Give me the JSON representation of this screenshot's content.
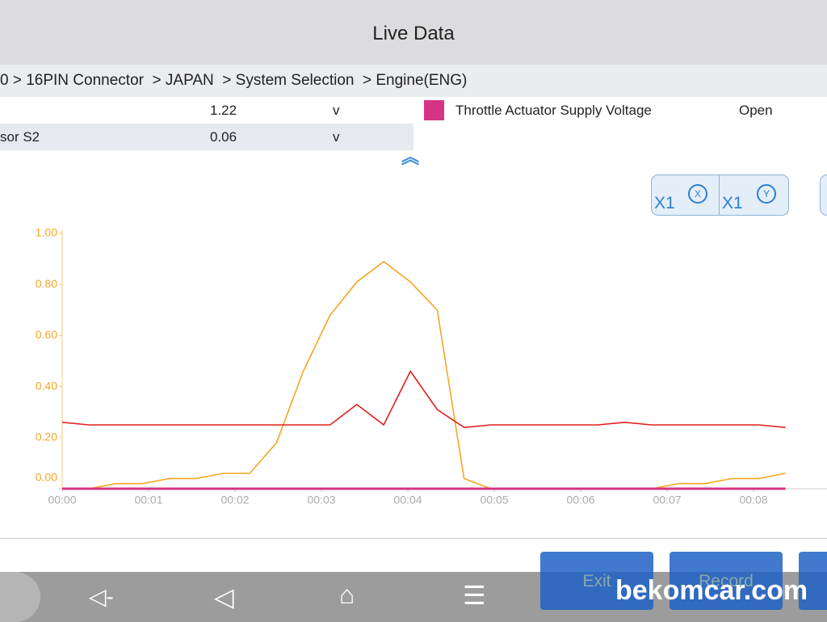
{
  "header": {
    "title": "Live Data"
  },
  "breadcrumb": "0 > 16PIN Connector  > JAPAN  > System Selection  > Engine(ENG)",
  "rows": [
    {
      "value": "1.22",
      "unit": "v"
    },
    {
      "name": "sor S2",
      "value": "0.06",
      "unit": "v"
    }
  ],
  "legend_status": "Open",
  "zoom": [
    "X1",
    "X1"
  ],
  "buttons": [
    "Exit",
    "Record"
  ],
  "watermark": "bekomcar.com",
  "chart_data": {
    "type": "line",
    "x": [
      0,
      0.31,
      0.62,
      0.93,
      1.24,
      1.55,
      1.86,
      2.17,
      2.48,
      2.79,
      3.1,
      3.41,
      3.72,
      4.03,
      4.34,
      4.65,
      4.96,
      5.27,
      5.58,
      5.89,
      6.2,
      6.51,
      6.82,
      7.13,
      7.44,
      7.75,
      8.06,
      8.37
    ],
    "series": [
      {
        "color": "#f5a623",
        "values": [
          0,
          0,
          0.02,
          0.02,
          0.04,
          0.04,
          0.06,
          0.06,
          0.18,
          0.46,
          0.68,
          0.81,
          0.89,
          0.81,
          0.7,
          0.04,
          0,
          0,
          0,
          0,
          0,
          0,
          0,
          0.02,
          0.02,
          0.04,
          0.04,
          0.06
        ]
      },
      {
        "color": "#e0201c",
        "values": [
          0.26,
          0.25,
          0.25,
          0.25,
          0.25,
          0.25,
          0.25,
          0.25,
          0.25,
          0.25,
          0.25,
          0.33,
          0.25,
          0.46,
          0.31,
          0.24,
          0.25,
          0.25,
          0.25,
          0.25,
          0.25,
          0.26,
          0.25,
          0.25,
          0.25,
          0.25,
          0.25,
          0.24
        ]
      },
      {
        "name": "Throttle Actuator Supply Voltage",
        "color": "#d63384",
        "values": [
          0,
          0,
          0,
          0,
          0,
          0,
          0,
          0,
          0,
          0,
          0,
          0,
          0,
          0,
          0,
          0,
          0,
          0,
          0,
          0,
          0,
          0,
          0,
          0,
          0,
          0,
          0,
          0
        ]
      }
    ],
    "xlim": [
      0,
      8.85
    ],
    "xticks": [
      {
        "value": 0,
        "label": "00:00"
      },
      {
        "value": 1,
        "label": "00:01"
      },
      {
        "value": 2,
        "label": "00:02"
      },
      {
        "value": 3,
        "label": "00:03"
      },
      {
        "value": 4,
        "label": "00:04"
      },
      {
        "value": 5,
        "label": "00:05"
      },
      {
        "value": 6,
        "label": "00:06"
      },
      {
        "value": 7,
        "label": "00:07"
      },
      {
        "value": 8,
        "label": "00:08"
      }
    ],
    "ylim": [
      0,
      1
    ],
    "yticks": [
      {
        "value": 0,
        "label": "0.00"
      },
      {
        "value": 0.2,
        "label": "0.20"
      },
      {
        "value": 0.4,
        "label": "0.40"
      },
      {
        "value": 0.6,
        "label": "0.60"
      },
      {
        "value": 0.8,
        "label": "0.80"
      },
      {
        "value": 1,
        "label": "1.00"
      }
    ]
  }
}
